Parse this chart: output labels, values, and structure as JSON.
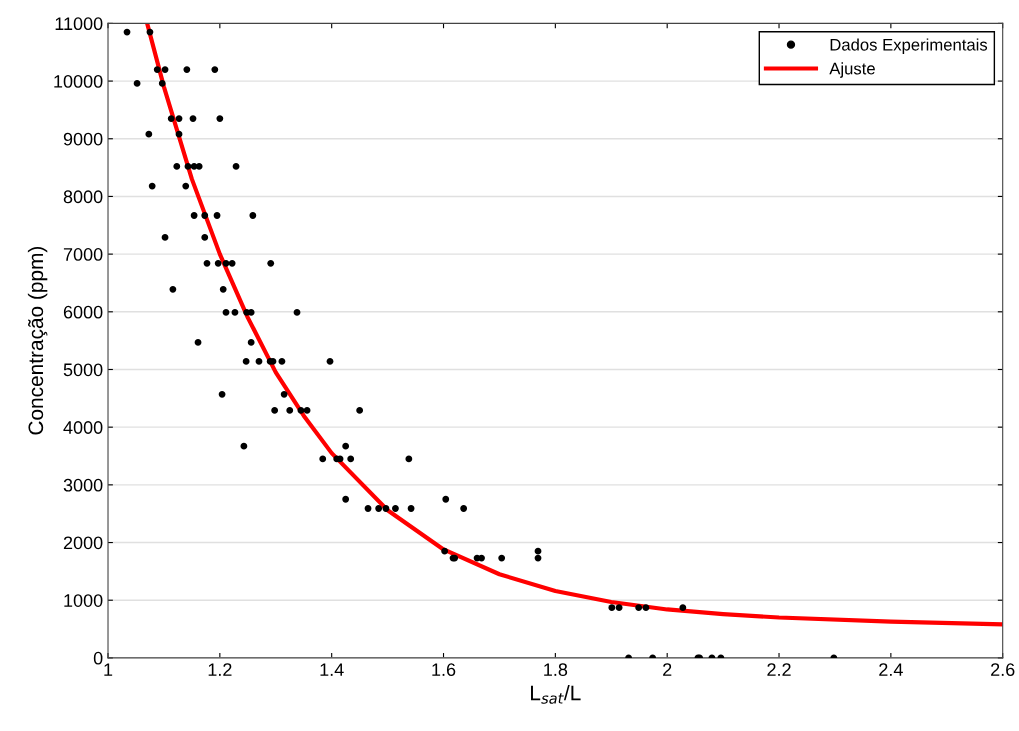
{
  "chart_data": {
    "type": "scatter",
    "xlabel": "L$_{sat}$/L",
    "ylabel": "Concentração (ppm)",
    "xlim": [
      1,
      2.6
    ],
    "xticks": [
      1,
      1.2,
      1.4,
      1.6,
      1.8,
      2,
      2.2,
      2.4,
      2.6
    ],
    "ylim": [
      0,
      11000
    ],
    "yticks": [
      0,
      1000,
      2000,
      3000,
      4000,
      5000,
      6000,
      7000,
      8000,
      9000,
      10000,
      11000
    ],
    "grid": "y",
    "legend": "top right",
    "series": [
      {
        "name": "Dados Experimentais",
        "color": "#000000",
        "marker": "circle",
        "x": [
          1.034,
          1.075,
          1.088,
          1.102,
          1.141,
          1.191,
          1.052,
          1.097,
          1.113,
          1.127,
          1.152,
          1.2,
          1.073,
          1.127,
          1.123,
          1.143,
          1.154,
          1.163,
          1.229,
          1.079,
          1.139,
          1.154,
          1.173,
          1.195,
          1.259,
          1.102,
          1.173,
          1.177,
          1.197,
          1.211,
          1.222,
          1.291,
          1.116,
          1.206,
          1.211,
          1.227,
          1.248,
          1.256,
          1.338,
          1.161,
          1.256,
          1.247,
          1.27,
          1.29,
          1.295,
          1.311,
          1.397,
          1.204,
          1.315,
          1.298,
          1.325,
          1.345,
          1.356,
          1.45,
          1.243,
          1.425,
          1.384,
          1.409,
          1.415,
          1.434,
          1.538,
          1.425,
          1.604,
          1.465,
          1.484,
          1.497,
          1.514,
          1.542,
          1.636,
          1.602,
          1.769,
          1.617,
          1.62,
          1.66,
          1.668,
          1.704,
          1.769,
          1.901,
          1.914,
          1.949,
          1.962,
          2.028,
          1.931,
          1.974,
          2.055,
          2.058,
          2.08,
          2.096,
          2.298
        ],
        "values": [
          10850,
          10850,
          10200,
          10200,
          10200,
          10200,
          9960,
          9960,
          9350,
          9350,
          9350,
          9350,
          9080,
          9080,
          8520,
          8520,
          8520,
          8520,
          8520,
          8180,
          8180,
          7670,
          7670,
          7670,
          7670,
          7290,
          7290,
          6840,
          6840,
          6840,
          6840,
          6840,
          6390,
          6390,
          5990,
          5990,
          5990,
          5990,
          5990,
          5470,
          5470,
          5140,
          5140,
          5140,
          5140,
          5140,
          5140,
          4570,
          4570,
          4290,
          4290,
          4290,
          4290,
          4290,
          3670,
          3670,
          3450,
          3450,
          3450,
          3450,
          3450,
          2750,
          2750,
          2590,
          2590,
          2590,
          2590,
          2590,
          2590,
          1850,
          1850,
          1730,
          1730,
          1730,
          1730,
          1730,
          1730,
          870,
          870,
          870,
          870,
          870,
          0,
          0,
          0,
          0,
          0,
          0,
          0
        ]
      },
      {
        "name": "Ajuste",
        "type": "line",
        "color": "#ff0000",
        "marker": "none",
        "line_style": "solid",
        "x": [
          1.07,
          1.1,
          1.15,
          1.2,
          1.25,
          1.3,
          1.35,
          1.4,
          1.5,
          1.6,
          1.7,
          1.8,
          1.9,
          2.0,
          2.1,
          2.2,
          2.4,
          2.6
        ],
        "values": [
          11000,
          9900,
          8300,
          7000,
          5900,
          4950,
          4200,
          3550,
          2560,
          1880,
          1450,
          1160,
          970,
          840,
          760,
          700,
          630,
          580
        ]
      }
    ]
  }
}
